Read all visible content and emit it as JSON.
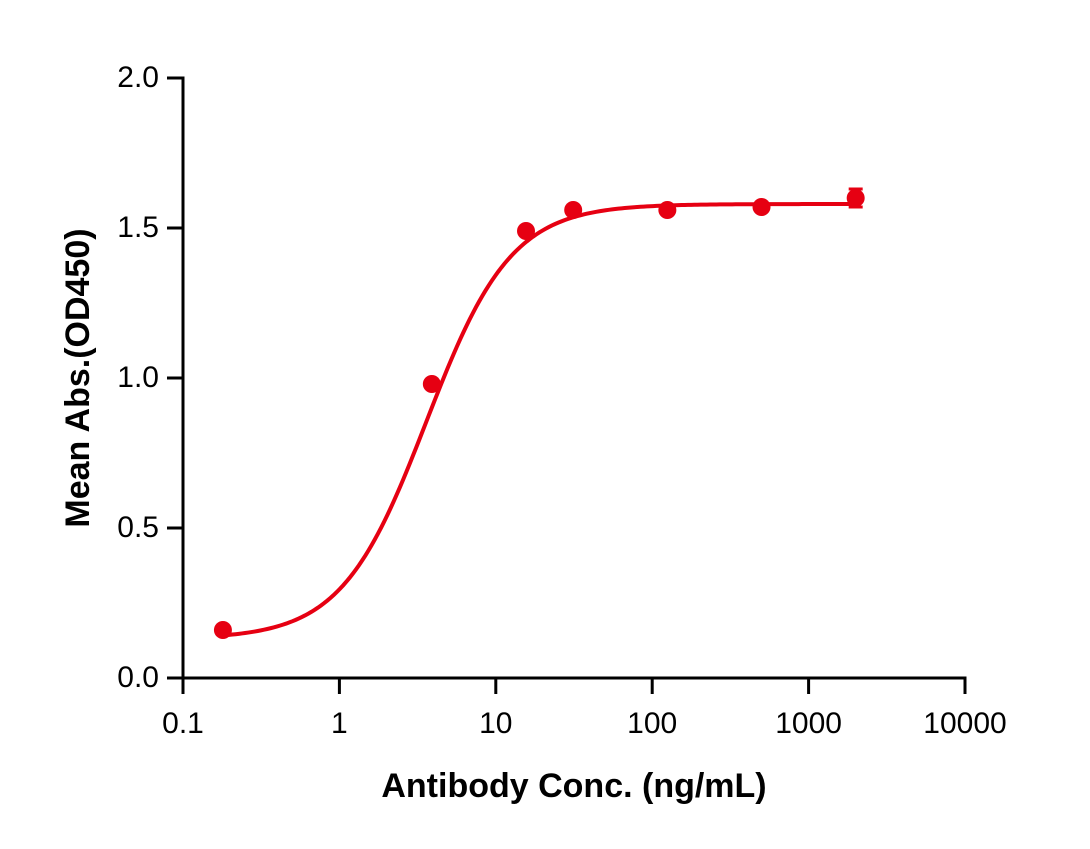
{
  "chart_data": {
    "type": "scatter",
    "title": "",
    "xlabel": "Antibody Conc. (ng/mL)",
    "ylabel": "Mean Abs.(OD450)",
    "xscale": "log",
    "xlim": [
      0.1,
      10000
    ],
    "ylim": [
      0.0,
      2.0
    ],
    "x_ticks": [
      "0.1",
      "1",
      "10",
      "100",
      "1000",
      "10000"
    ],
    "y_ticks": [
      "0.0",
      "0.5",
      "1.0",
      "1.5",
      "2.0"
    ],
    "grid": false,
    "legend": null,
    "series": [
      {
        "name": "Mean Abs.(OD450)",
        "color": "#e60012",
        "marker": "circle",
        "x": [
          0.18,
          3.9,
          15.6,
          31.25,
          125,
          500,
          2000
        ],
        "y": [
          0.16,
          0.98,
          1.49,
          1.56,
          1.56,
          1.57,
          1.6
        ],
        "error": [
          0.0,
          0.01,
          0.01,
          0.01,
          0.01,
          0.01,
          0.03
        ],
        "fit": {
          "type": "4PL",
          "bottom": 0.13,
          "top": 1.58,
          "ec50": 3.6,
          "hill": 1.6
        }
      }
    ]
  }
}
